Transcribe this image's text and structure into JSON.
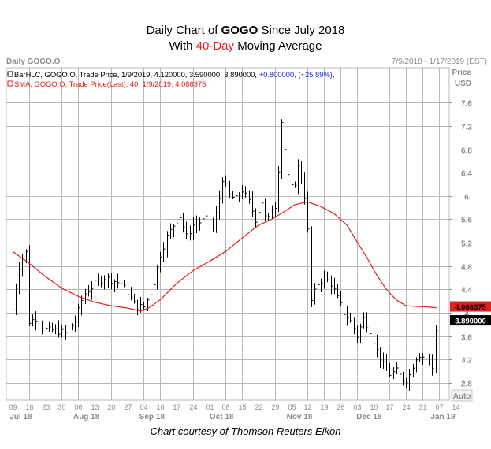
{
  "title": {
    "line1_prefix": "Daily Chart of ",
    "line1_ticker": "GOGO",
    "line1_suffix": " Since July 2018",
    "line2_prefix": "With ",
    "line2_highlight": "40-Day",
    "line2_suffix": " Moving Average"
  },
  "caption": "Chart courtesy of Thomson Reuters Eikon",
  "chart_data": {
    "type": "bar",
    "subtype": "ohlc-with-moving-average",
    "header_left": "Daily GOGO.O",
    "header_right": "7/9/2018 - 1/17/2019 (EST)",
    "price_label": "Price",
    "currency_label": "USD",
    "auto_label": "Auto",
    "legend": [
      {
        "text_main": "BarHLC, GOGO.O, Trade Price, 1/9/2019, 4.120000, 3.590000, 3.890000, ",
        "text_change": "+0.800000, (+25.89%),",
        "color": "#000000"
      },
      {
        "text_main": "SMA, GOGO.O, Trade Price(Last),  40,  1/9/2019, 4.086375",
        "text_change": "",
        "color": "#e0201b"
      }
    ],
    "ylim": [
      2.5,
      8.2
    ],
    "yticks": [
      2.8,
      3.2,
      3.6,
      4.0,
      4.4,
      4.8,
      5.2,
      5.6,
      6.0,
      6.4,
      6.8,
      7.2,
      7.6
    ],
    "ytick_labels": [
      "2.8",
      "3.2",
      "3.6",
      "4",
      "4.4",
      "4.8",
      "5.2",
      "5.6",
      "6",
      "6.4",
      "6.8",
      "7.2",
      "7.6"
    ],
    "day_labels": [
      "09",
      "16",
      "23",
      "30",
      "06",
      "13",
      "20",
      "27",
      "04",
      "10",
      "17",
      "24",
      "01",
      "08",
      "15",
      "22",
      "29",
      "05",
      "12",
      "19",
      "26",
      "03",
      "10",
      "17",
      "24",
      "31",
      "07",
      "14"
    ],
    "month_labels": [
      {
        "label": "Jul 18",
        "tick_index": 0.5
      },
      {
        "label": "Aug 18",
        "tick_index": 4.5
      },
      {
        "label": "Sep 18",
        "tick_index": 8.5
      },
      {
        "label": "Oct 18",
        "tick_index": 12.75
      },
      {
        "label": "Nov 18",
        "tick_index": 17.5
      },
      {
        "label": "Dec 18",
        "tick_index": 21.75
      },
      {
        "label": "Jan 19",
        "tick_index": 26.25
      }
    ],
    "price_series_name": "GOGO.O daily High-Low-Close",
    "key_points": [
      {
        "t": 0,
        "v": 4.05
      },
      {
        "t": 0.35,
        "v": 4.75
      },
      {
        "t": 0.6,
        "v": 4.95
      },
      {
        "t": 0.85,
        "v": 5.05
      },
      {
        "t": 1.0,
        "v": 3.85
      },
      {
        "t": 1.4,
        "v": 3.9
      },
      {
        "t": 2.0,
        "v": 3.7
      },
      {
        "t": 2.6,
        "v": 3.7
      },
      {
        "t": 3.2,
        "v": 3.65
      },
      {
        "t": 3.8,
        "v": 3.85
      },
      {
        "t": 4.3,
        "v": 4.3
      },
      {
        "t": 5.0,
        "v": 4.5
      },
      {
        "t": 5.6,
        "v": 4.6
      },
      {
        "t": 6.1,
        "v": 4.55
      },
      {
        "t": 6.6,
        "v": 4.5
      },
      {
        "t": 7.0,
        "v": 4.35
      },
      {
        "t": 7.5,
        "v": 4.1
      },
      {
        "t": 8.0,
        "v": 4.1
      },
      {
        "t": 8.5,
        "v": 4.4
      },
      {
        "t": 9.0,
        "v": 5.0
      },
      {
        "t": 9.4,
        "v": 5.3
      },
      {
        "t": 9.8,
        "v": 5.5
      },
      {
        "t": 10.2,
        "v": 5.65
      },
      {
        "t": 10.6,
        "v": 5.3
      },
      {
        "t": 11.0,
        "v": 5.5
      },
      {
        "t": 11.4,
        "v": 5.55
      },
      {
        "t": 11.8,
        "v": 5.6
      },
      {
        "t": 12.2,
        "v": 5.45
      },
      {
        "t": 12.5,
        "v": 5.8
      },
      {
        "t": 12.8,
        "v": 6.3
      },
      {
        "t": 13.2,
        "v": 6.0
      },
      {
        "t": 13.6,
        "v": 5.95
      },
      {
        "t": 14.0,
        "v": 6.1
      },
      {
        "t": 14.4,
        "v": 5.9
      },
      {
        "t": 14.8,
        "v": 5.6
      },
      {
        "t": 15.2,
        "v": 5.9
      },
      {
        "t": 15.5,
        "v": 5.5
      },
      {
        "t": 15.8,
        "v": 5.8
      },
      {
        "t": 16.1,
        "v": 5.85
      },
      {
        "t": 16.35,
        "v": 7.4
      },
      {
        "t": 16.6,
        "v": 6.8
      },
      {
        "t": 16.85,
        "v": 6.2
      },
      {
        "t": 17.1,
        "v": 6.1
      },
      {
        "t": 17.4,
        "v": 6.5
      },
      {
        "t": 17.7,
        "v": 6.2
      },
      {
        "t": 17.95,
        "v": 5.7
      },
      {
        "t": 18.2,
        "v": 4.2
      },
      {
        "t": 18.6,
        "v": 4.5
      },
      {
        "t": 19.0,
        "v": 4.6
      },
      {
        "t": 19.4,
        "v": 4.5
      },
      {
        "t": 19.8,
        "v": 4.25
      },
      {
        "t": 20.2,
        "v": 4.0
      },
      {
        "t": 20.6,
        "v": 3.85
      },
      {
        "t": 21.0,
        "v": 3.6
      },
      {
        "t": 21.4,
        "v": 3.9
      },
      {
        "t": 21.8,
        "v": 3.7
      },
      {
        "t": 22.2,
        "v": 3.35
      },
      {
        "t": 22.6,
        "v": 3.1
      },
      {
        "t": 23.0,
        "v": 2.95
      },
      {
        "t": 23.4,
        "v": 3.0
      },
      {
        "t": 23.8,
        "v": 2.85
      },
      {
        "t": 24.1,
        "v": 2.85
      },
      {
        "t": 24.4,
        "v": 3.1
      },
      {
        "t": 24.7,
        "v": 3.3
      },
      {
        "t": 25.0,
        "v": 3.25
      },
      {
        "t": 25.4,
        "v": 3.2
      },
      {
        "t": 25.6,
        "v": 3.05
      },
      {
        "t": 25.85,
        "v": 3.89
      }
    ],
    "sma_series_name": "40-Day SMA",
    "sma_points": [
      {
        "t": 0,
        "v": 5.05
      },
      {
        "t": 1,
        "v": 4.85
      },
      {
        "t": 2,
        "v": 4.62
      },
      {
        "t": 3,
        "v": 4.42
      },
      {
        "t": 4,
        "v": 4.28
      },
      {
        "t": 5,
        "v": 4.18
      },
      {
        "t": 6,
        "v": 4.12
      },
      {
        "t": 7,
        "v": 4.08
      },
      {
        "t": 7.8,
        "v": 4.03
      },
      {
        "t": 8.3,
        "v": 4.08
      },
      {
        "t": 9,
        "v": 4.22
      },
      {
        "t": 10,
        "v": 4.5
      },
      {
        "t": 11,
        "v": 4.72
      },
      {
        "t": 12,
        "v": 4.88
      },
      {
        "t": 13,
        "v": 5.05
      },
      {
        "t": 14,
        "v": 5.28
      },
      {
        "t": 15,
        "v": 5.5
      },
      {
        "t": 15.8,
        "v": 5.6
      },
      {
        "t": 16.5,
        "v": 5.72
      },
      {
        "t": 17.2,
        "v": 5.85
      },
      {
        "t": 18.0,
        "v": 5.9
      },
      {
        "t": 18.8,
        "v": 5.82
      },
      {
        "t": 19.6,
        "v": 5.7
      },
      {
        "t": 20.4,
        "v": 5.5
      },
      {
        "t": 21.0,
        "v": 5.22
      },
      {
        "t": 21.6,
        "v": 4.95
      },
      {
        "t": 22.2,
        "v": 4.65
      },
      {
        "t": 22.8,
        "v": 4.4
      },
      {
        "t": 23.4,
        "v": 4.22
      },
      {
        "t": 24.0,
        "v": 4.12
      },
      {
        "t": 24.5,
        "v": 4.11
      },
      {
        "t": 25.2,
        "v": 4.1
      },
      {
        "t": 25.85,
        "v": 4.086
      }
    ],
    "price_tag": {
      "value": 3.89,
      "label": "3.890000",
      "color": "#000000"
    },
    "sma_tag": {
      "value": 4.086375,
      "label": "4.086375",
      "color": "#e0201b"
    },
    "colors": {
      "grid": "#b8b8b8",
      "price": "#000000",
      "sma": "#e0201b",
      "axis_text": "#8c8c8c",
      "legend_change": "#1a2fd0"
    }
  }
}
